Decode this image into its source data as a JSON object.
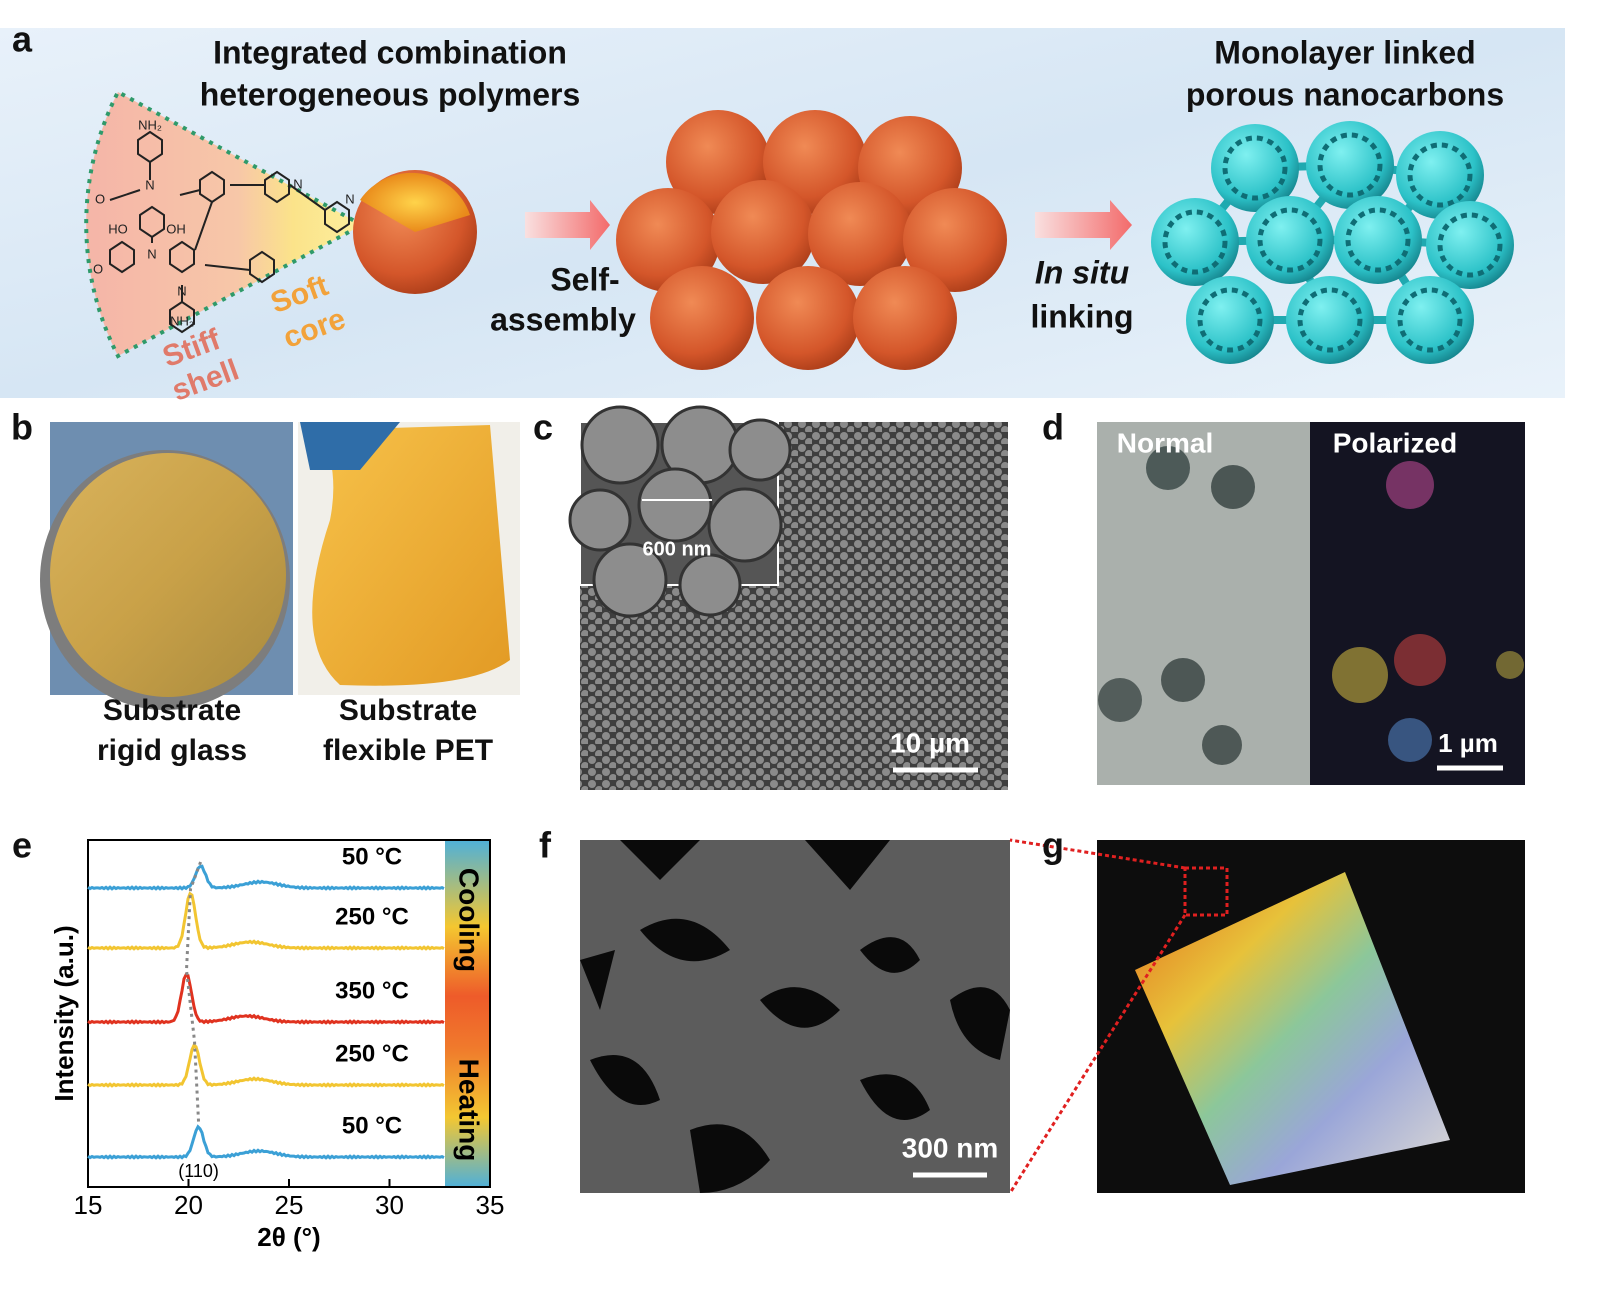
{
  "panel_a": {
    "label": "a",
    "left_title": [
      "Integrated combination",
      "heterogeneous polymers"
    ],
    "right_title": [
      "Monolayer linked",
      "porous nanocarbons"
    ],
    "soft": [
      "Soft",
      "core"
    ],
    "stiff": [
      "Stiff",
      "shell"
    ],
    "step1": [
      "Self-",
      "assembly"
    ],
    "step2": [
      "In situ",
      "linking"
    ],
    "atoms": [
      "NH₂",
      "N",
      "O",
      "HO",
      "OH",
      "N",
      "O",
      "N",
      "NH₂",
      "N",
      "N"
    ]
  },
  "panel_b": {
    "label": "b",
    "left_caption": [
      "Substrate",
      "rigid glass"
    ],
    "right_caption": [
      "Substrate",
      "flexible PET"
    ]
  },
  "panel_c": {
    "label": "c",
    "inset_scale": "600 nm",
    "scale": "10 µm"
  },
  "panel_d": {
    "label": "d",
    "left": "Normal",
    "right": "Polarized",
    "scale": "1 µm"
  },
  "panel_e": {
    "label": "e"
  },
  "chart_data": {
    "type": "line",
    "x_label": "2θ (°)",
    "y_label": "Intensity (a.u.)",
    "xlim": [
      15,
      35
    ],
    "xticks": [
      15,
      20,
      25,
      30,
      35
    ],
    "peak_label": "(110)",
    "bands": [
      "Cooling",
      "Heating"
    ],
    "series": [
      {
        "name": "50 °C",
        "color": "#3ba0d6",
        "peak": 20.6
      },
      {
        "name": "250 °C",
        "color": "#f2c531",
        "peak": 20.1
      },
      {
        "name": "350 °C",
        "color": "#e0321f",
        "peak": 19.9
      },
      {
        "name": "250 °C",
        "color": "#f2c531",
        "peak": 20.3
      },
      {
        "name": "50 °C",
        "color": "#3ba0d6",
        "peak": 20.5
      }
    ]
  },
  "panel_f": {
    "label": "f",
    "scale": "300 nm"
  },
  "panel_g": {
    "label": "g"
  }
}
